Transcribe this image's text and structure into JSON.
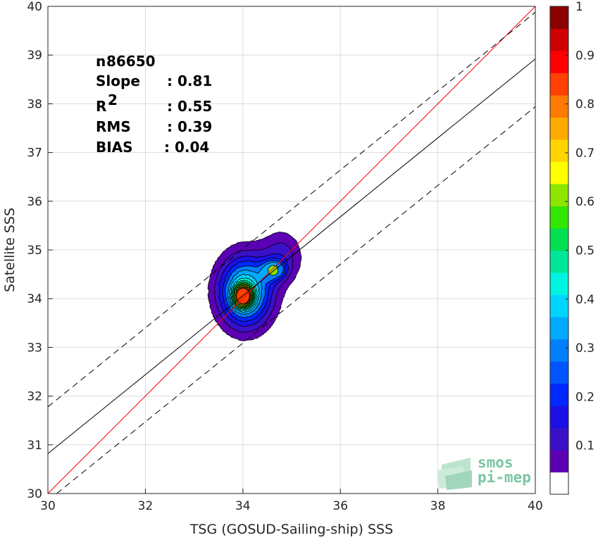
{
  "chart_data": {
    "type": "density-contour-scatter",
    "xlabel": "TSG (GOSUD-Sailing-ship) SSS",
    "ylabel": "Satellite SSS",
    "xlim": [
      30,
      40
    ],
    "ylim": [
      30,
      40
    ],
    "x_ticks": [
      "30",
      "32",
      "34",
      "36",
      "38",
      "40"
    ],
    "y_ticks": [
      "30",
      "31",
      "32",
      "33",
      "34",
      "35",
      "36",
      "37",
      "38",
      "39",
      "40"
    ],
    "grid": true,
    "stats": [
      {
        "name": "n",
        "value": ": 86650"
      },
      {
        "name": "Slope",
        "value": ": 0.81"
      },
      {
        "name": "R",
        "sup": "2",
        "value": ": 0.55"
      },
      {
        "name": "RMS",
        "value": ": 0.39"
      },
      {
        "name": "BIAS",
        "value": ": 0.04"
      }
    ],
    "lines": [
      {
        "id": "one-to-one",
        "color": "#ff0000",
        "style": "solid",
        "points": [
          [
            30,
            30
          ],
          [
            40,
            40
          ]
        ]
      },
      {
        "id": "regression",
        "color": "#000000",
        "style": "solid",
        "points": [
          [
            30,
            30.82
          ],
          [
            40,
            38.92
          ]
        ]
      },
      {
        "id": "upper-bound",
        "color": "#000000",
        "style": "dashed",
        "points": [
          [
            30,
            31.78
          ],
          [
            40,
            39.88
          ]
        ]
      },
      {
        "id": "lower-bound",
        "color": "#000000",
        "style": "dashed",
        "points": [
          [
            30.18,
            30
          ],
          [
            40,
            37.94
          ]
        ]
      }
    ],
    "density_peak": {
      "x": 34.0,
      "y": 34.05,
      "value": 1.0
    },
    "secondary_peak": {
      "x": 34.62,
      "y": 34.58,
      "value": 0.6
    },
    "contour_levels": [
      0.05,
      0.1,
      0.15,
      0.2,
      0.25,
      0.3,
      0.35,
      0.4,
      0.45,
      0.5,
      0.55,
      0.6,
      0.65,
      0.7,
      0.75,
      0.8,
      0.85,
      0.9,
      0.95
    ],
    "colorbar": {
      "range": [
        0,
        1
      ],
      "tick_labels": [
        "0.1",
        "0.2",
        "0.3",
        "0.4",
        "0.5",
        "0.6",
        "0.7",
        "0.8",
        "0.9",
        "1"
      ],
      "colors": [
        "#ffffff",
        "#5b00b3",
        "#3a10c8",
        "#1a10e6",
        "#0028ff",
        "#0055ff",
        "#0080ff",
        "#00aaff",
        "#00d5ff",
        "#00f5e0",
        "#00e69a",
        "#00e050",
        "#33e600",
        "#8ce600",
        "#ffff00",
        "#ffd500",
        "#ffaa00",
        "#ff7a00",
        "#ff4000",
        "#ff0000",
        "#d00000",
        "#8b0000"
      ]
    }
  },
  "logo": {
    "line1": "smos",
    "line2": "pi-mep"
  }
}
